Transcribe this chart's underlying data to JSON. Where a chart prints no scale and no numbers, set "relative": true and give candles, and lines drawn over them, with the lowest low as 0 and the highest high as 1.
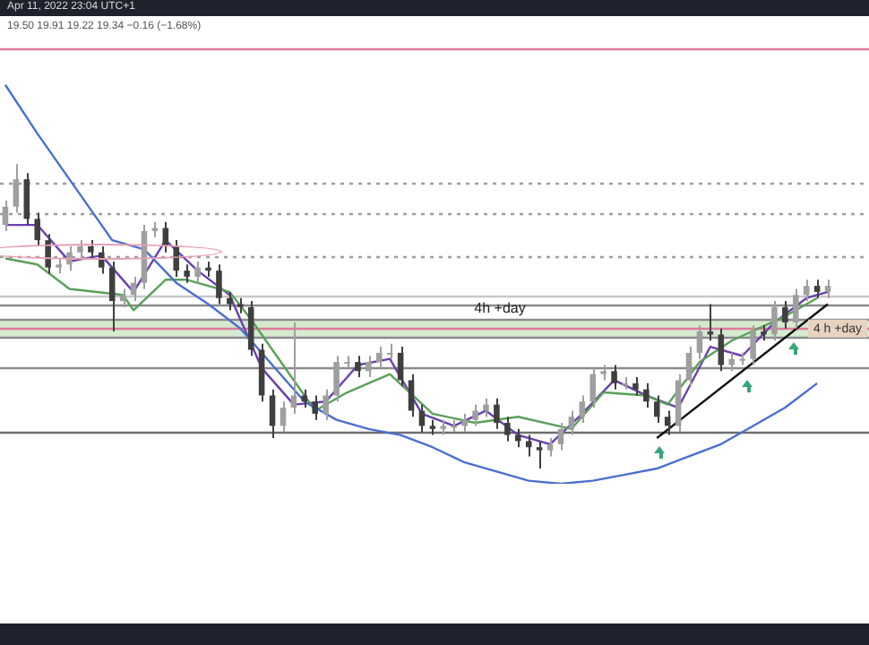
{
  "chart_data": {
    "type": "candlestick",
    "relative": true,
    "legend": false,
    "marker": "none",
    "colors": [
      "#9f9f9f",
      "#9f9f9f",
      "#3f3f3f",
      "#3f3f3f",
      "#3f3f3f",
      "#9f9f9f",
      "#9f9f9f",
      "#9f9f9f",
      "#3f3f3f",
      "#3f3f3f",
      "#3f3f3f",
      "#9f9f9f",
      "#9f9f9f",
      "#9f9f9f",
      "#9f9f9f",
      "#3f3f3f",
      "#3f3f3f",
      "#3f3f3f",
      "#9f9f9f",
      "#3f3f3f",
      "#3f3f3f",
      "#3f3f3f",
      "#3f3f3f",
      "#3f3f3f",
      "#3f3f3f",
      "#3f3f3f",
      "#9f9f9f",
      "#9f9f9f",
      "#3f3f3f",
      "#3f3f3f",
      "#9f9f9f",
      "#9f9f9f",
      "#9f9f9f",
      "#3f3f3f",
      "#9f9f9f",
      "#9f9f9f",
      "#9f9f9f",
      "#3f3f3f",
      "#3f3f3f",
      "#3f3f3f",
      "#3f3f3f",
      "#9f9f9f",
      "#9f9f9f",
      "#9f9f9f",
      "#9f9f9f",
      "#9f9f9f",
      "#3f3f3f",
      "#3f3f3f",
      "#3f3f3f",
      "#3f3f3f",
      "#3f3f3f",
      "#9f9f9f",
      "#9f9f9f",
      "#9f9f9f",
      "#9f9f9f",
      "#9f9f9f",
      "#9f9f9f",
      "#3f3f3f",
      "#9f9f9f",
      "#3f3f3f",
      "#3f3f3f",
      "#3f3f3f",
      "#3f3f3f",
      "#9f9f9f",
      "#9f9f9f",
      "#9f9f9f",
      "#3f3f3f",
      "#3f3f3f",
      "#9f9f9f",
      "#9f9f9f",
      "#9f9f9f",
      "#3f3f3f",
      "#9f9f9f",
      "#3f3f3f",
      "#9f9f9f",
      "#9f9f9f",
      "#3f3f3f",
      "#9f9f9f"
    ],
    "categories": [
      null,
      null,
      null,
      null,
      null,
      null,
      null,
      null,
      null,
      null,
      null,
      null,
      null,
      null,
      null,
      null,
      null,
      null,
      null,
      null,
      null,
      null,
      null,
      null,
      null,
      null,
      null,
      null,
      null,
      null,
      null,
      null,
      null,
      null,
      null,
      null,
      null,
      null,
      null,
      null,
      null,
      null,
      null,
      null,
      null,
      null,
      null,
      null,
      null,
      null,
      null,
      null,
      null,
      null,
      null,
      null,
      null,
      null,
      null,
      null,
      null,
      null,
      null,
      null,
      null,
      null,
      null,
      null,
      null,
      null,
      null,
      null,
      null,
      null,
      null,
      null,
      null,
      null
    ],
    "ohlc": [
      [
        0.8,
        0.88,
        0.78,
        0.86
      ],
      [
        0.86,
        1,
        0.84,
        0.95
      ],
      [
        0.95,
        0.97,
        0.8,
        0.82
      ],
      [
        0.82,
        0.84,
        0.73,
        0.75
      ],
      [
        0.75,
        0.77,
        0.64,
        0.66
      ],
      [
        0.66,
        0.69,
        0.64,
        0.67
      ],
      [
        0.67,
        0.73,
        0.65,
        0.71
      ],
      [
        0.71,
        0.75,
        0.69,
        0.73
      ],
      [
        0.73,
        0.75,
        0.69,
        0.71
      ],
      [
        0.71,
        0.73,
        0.64,
        0.66
      ],
      [
        0.66,
        0.68,
        0.45,
        0.55
      ],
      [
        0.55,
        0.59,
        0.53,
        0.57
      ],
      [
        0.57,
        0.63,
        0.55,
        0.61
      ],
      [
        0.61,
        0.8,
        0.59,
        0.78
      ],
      [
        0.78,
        0.81,
        0.76,
        0.79
      ],
      [
        0.79,
        0.81,
        0.71,
        0.73
      ],
      [
        0.73,
        0.75,
        0.63,
        0.65
      ],
      [
        0.65,
        0.67,
        0.61,
        0.63
      ],
      [
        0.63,
        0.68,
        0.61,
        0.66
      ],
      [
        0.66,
        0.68,
        0.63,
        0.65
      ],
      [
        0.65,
        0.67,
        0.54,
        0.56
      ],
      [
        0.56,
        0.58,
        0.52,
        0.54
      ],
      [
        0.54,
        0.56,
        0.51,
        0.53
      ],
      [
        0.53,
        0.55,
        0.37,
        0.39
      ],
      [
        0.39,
        0.41,
        0.22,
        0.24
      ],
      [
        0.24,
        0.26,
        0.1,
        0.14
      ],
      [
        0.14,
        0.22,
        0.12,
        0.2
      ],
      [
        0.2,
        0.48,
        0.18,
        0.24
      ],
      [
        0.24,
        0.26,
        0.2,
        0.22
      ],
      [
        0.22,
        0.24,
        0.16,
        0.18
      ],
      [
        0.18,
        0.26,
        0.16,
        0.24
      ],
      [
        0.24,
        0.37,
        0.22,
        0.35
      ],
      [
        0.35,
        0.37,
        0.33,
        0.35
      ],
      [
        0.35,
        0.37,
        0.3,
        0.32
      ],
      [
        0.32,
        0.37,
        0.3,
        0.35
      ],
      [
        0.35,
        0.4,
        0.33,
        0.38
      ],
      [
        0.38,
        0.41,
        0.36,
        0.38
      ],
      [
        0.38,
        0.4,
        0.27,
        0.29
      ],
      [
        0.29,
        0.31,
        0.17,
        0.19
      ],
      [
        0.19,
        0.21,
        0.12,
        0.14
      ],
      [
        0.14,
        0.16,
        0.11,
        0.13
      ],
      [
        0.13,
        0.16,
        0.11,
        0.14
      ],
      [
        0.14,
        0.16,
        0.12,
        0.14
      ],
      [
        0.14,
        0.18,
        0.12,
        0.16
      ],
      [
        0.16,
        0.21,
        0.14,
        0.19
      ],
      [
        0.19,
        0.23,
        0.17,
        0.21
      ],
      [
        0.21,
        0.23,
        0.13,
        0.15
      ],
      [
        0.15,
        0.17,
        0.09,
        0.11
      ],
      [
        0.11,
        0.13,
        0.07,
        0.09
      ],
      [
        0.09,
        0.11,
        0.04,
        0.07
      ],
      [
        0.07,
        0.09,
        0,
        0.06
      ],
      [
        0.06,
        0.1,
        0.04,
        0.08
      ],
      [
        0.08,
        0.15,
        0.06,
        0.13
      ],
      [
        0.13,
        0.19,
        0.11,
        0.17
      ],
      [
        0.17,
        0.24,
        0.15,
        0.22
      ],
      [
        0.22,
        0.33,
        0.2,
        0.31
      ],
      [
        0.31,
        0.34,
        0.29,
        0.32
      ],
      [
        0.32,
        0.34,
        0.26,
        0.28
      ],
      [
        0.28,
        0.3,
        0.26,
        0.28
      ],
      [
        0.28,
        0.3,
        0.24,
        0.26
      ],
      [
        0.26,
        0.28,
        0.2,
        0.22
      ],
      [
        0.22,
        0.24,
        0.15,
        0.17
      ],
      [
        0.17,
        0.19,
        0.11,
        0.14
      ],
      [
        0.14,
        0.31,
        0.12,
        0.29
      ],
      [
        0.29,
        0.4,
        0.27,
        0.38
      ],
      [
        0.38,
        0.47,
        0.36,
        0.45
      ],
      [
        0.45,
        0.54,
        0.42,
        0.44
      ],
      [
        0.44,
        0.46,
        0.32,
        0.34
      ],
      [
        0.34,
        0.38,
        0.32,
        0.36
      ],
      [
        0.36,
        0.38,
        0.34,
        0.36
      ],
      [
        0.36,
        0.47,
        0.34,
        0.45
      ],
      [
        0.45,
        0.47,
        0.42,
        0.44
      ],
      [
        0.44,
        0.55,
        0.42,
        0.53
      ],
      [
        0.53,
        0.55,
        0.46,
        0.48
      ],
      [
        0.48,
        0.59,
        0.46,
        0.57
      ],
      [
        0.57,
        0.62,
        0.55,
        0.6
      ],
      [
        0.6,
        0.62,
        0.56,
        0.58
      ],
      [
        0.58,
        0.62,
        0.56,
        0.6
      ]
    ],
    "series": [
      {
        "type": "line",
        "color": "#4a6fd0",
        "values": [
          1.26,
          null,
          null,
          1.1,
          null,
          null,
          0.95,
          null,
          0.85,
          null,
          0.75,
          null,
          null,
          0.72,
          null,
          null,
          0.61,
          null,
          null,
          0.54,
          null,
          null,
          0.46,
          null,
          null,
          0.34,
          null,
          null,
          0.22,
          null,
          null,
          0.16,
          null,
          null,
          0.13,
          null,
          null,
          0.11,
          null,
          null,
          0.07,
          null,
          null,
          0.02,
          null,
          null,
          -0.01,
          null,
          null,
          -0.04,
          null,
          null,
          -0.05,
          null,
          null,
          -0.04,
          null,
          null,
          -0.02,
          null,
          null,
          0,
          null,
          null,
          0.04,
          null,
          null,
          0.08,
          null,
          null,
          0.14,
          null,
          null,
          0.2,
          null,
          null,
          0.28,
          null
        ]
      },
      {
        "type": "line",
        "color": "#5aa05a",
        "values": [
          0.69,
          null,
          null,
          0.67,
          null,
          null,
          0.59,
          null,
          null,
          null,
          null,
          0.57,
          0.52,
          null,
          null,
          0.62,
          null,
          0.62,
          null,
          null,
          null,
          0.58,
          null,
          0.49,
          null,
          null,
          0.34,
          null,
          null,
          0.19,
          null,
          null,
          0.25,
          null,
          null,
          null,
          0.31,
          null,
          null,
          null,
          0.18,
          null,
          null,
          null,
          0.15,
          null,
          null,
          null,
          0.17,
          null,
          null,
          null,
          null,
          0.13,
          null,
          null,
          0.25,
          null,
          null,
          null,
          0.24,
          null,
          0.21,
          null,
          null,
          0.35,
          null,
          null,
          0.42,
          null,
          null,
          null,
          null,
          0.5,
          null,
          null,
          0.56,
          null
        ]
      },
      {
        "type": "line",
        "color": "#6a3fb0",
        "values": [
          0.8,
          null,
          null,
          0.8,
          null,
          null,
          0.68,
          null,
          null,
          0.7,
          null,
          null,
          0.58,
          null,
          null,
          0.75,
          null,
          null,
          0.65,
          null,
          null,
          0.57,
          null,
          null,
          0.33,
          null,
          null,
          0.21,
          null,
          null,
          0.22,
          null,
          null,
          0.34,
          null,
          null,
          0.36,
          null,
          null,
          0.18,
          null,
          null,
          0.14,
          null,
          null,
          0.19,
          null,
          null,
          0.11,
          null,
          null,
          0.08,
          null,
          null,
          0.18,
          null,
          null,
          0.29,
          null,
          null,
          0.24,
          null,
          null,
          0.2,
          null,
          null,
          0.4,
          null,
          null,
          0.37,
          null,
          null,
          0.48,
          null,
          null,
          0.56,
          null,
          0.58
        ]
      },
      {
        "type": "line",
        "color": "#111111",
        "line_style": "solid",
        "values": [
          null,
          null,
          null,
          null,
          null,
          null,
          null,
          null,
          null,
          null,
          null,
          null,
          null,
          null,
          null,
          null,
          null,
          null,
          null,
          null,
          null,
          null,
          null,
          null,
          null,
          null,
          null,
          null,
          null,
          null,
          null,
          null,
          null,
          null,
          null,
          null,
          null,
          null,
          null,
          null,
          null,
          null,
          null,
          null,
          null,
          null,
          null,
          null,
          null,
          null,
          null,
          null,
          null,
          null,
          null,
          null,
          null,
          null,
          null,
          null,
          null,
          0.1,
          null,
          null,
          null,
          null,
          null,
          null,
          null,
          null,
          null,
          null,
          null,
          null,
          null,
          null,
          null,
          0.54
        ]
      }
    ],
    "ref_lines": [
      {
        "axis": "y",
        "value": 1.38,
        "color": "#e07a9a"
      },
      {
        "axis": "y",
        "value": 0.94,
        "color": "#9e9e9e",
        "line_style": "dotted"
      },
      {
        "axis": "y",
        "value": 0.84,
        "color": "#9e9e9e",
        "line_style": "dotted"
      },
      {
        "axis": "y",
        "value": 0.7,
        "color": "#9e9e9e",
        "line_style": "dotted"
      },
      {
        "axis": "y",
        "value": 0.57,
        "color": "#c8c8c8"
      },
      {
        "axis": "y",
        "value": 0.54,
        "color": "#8a8a8a"
      },
      {
        "axis": "y",
        "value": 0.49,
        "color": "#8a8a8a"
      },
      {
        "axis": "y",
        "value": 0.46,
        "color": "#e07a9a"
      },
      {
        "axis": "y",
        "value": 0.43,
        "color": "#8a8a8a"
      },
      {
        "axis": "y",
        "value": 0.33,
        "color": "#8a8a8a"
      },
      {
        "axis": "y",
        "value": 0.12,
        "color": "#6e6e6e"
      }
    ],
    "bands": [
      {
        "axis": "y",
        "from": 0.43,
        "to": 0.49,
        "label": "4 h +day",
        "color": "#d6ead0"
      }
    ],
    "annotations": [
      "Apr 11, 2022 23:04 UTC+1",
      "19.50 19.91 19.22 19.34 −0.16 (−1.68%)",
      {
        "text": "4h +day",
        "y": 0.49
      }
    ]
  }
}
